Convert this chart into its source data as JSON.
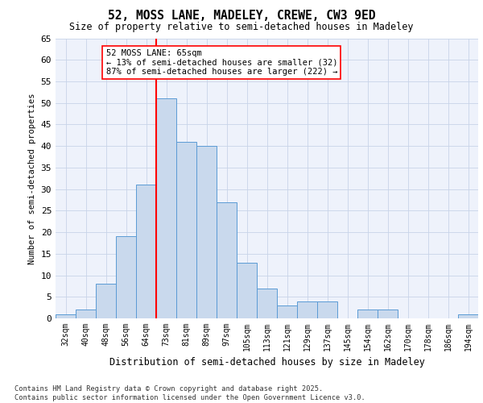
{
  "title": "52, MOSS LANE, MADELEY, CREWE, CW3 9ED",
  "subtitle": "Size of property relative to semi-detached houses in Madeley",
  "xlabel": "Distribution of semi-detached houses by size in Madeley",
  "ylabel": "Number of semi-detached properties",
  "categories": [
    "32sqm",
    "40sqm",
    "48sqm",
    "56sqm",
    "64sqm",
    "73sqm",
    "81sqm",
    "89sqm",
    "97sqm",
    "105sqm",
    "113sqm",
    "121sqm",
    "129sqm",
    "137sqm",
    "145sqm",
    "154sqm",
    "162sqm",
    "170sqm",
    "178sqm",
    "186sqm",
    "194sqm"
  ],
  "values": [
    1,
    2,
    8,
    19,
    31,
    51,
    41,
    40,
    27,
    13,
    7,
    3,
    4,
    4,
    0,
    2,
    2,
    0,
    0,
    0,
    1
  ],
  "bar_color": "#c9d9ed",
  "bar_edge_color": "#5b9bd5",
  "property_size": "65sqm",
  "pct_smaller": 13,
  "count_smaller": 32,
  "pct_larger": 87,
  "count_larger": 222,
  "red_line_x": 4.5,
  "ylim": [
    0,
    65
  ],
  "yticks": [
    0,
    5,
    10,
    15,
    20,
    25,
    30,
    35,
    40,
    45,
    50,
    55,
    60,
    65
  ],
  "background_color": "#eef2fb",
  "grid_color": "#c8d4e8",
  "footer_line1": "Contains HM Land Registry data © Crown copyright and database right 2025.",
  "footer_line2": "Contains public sector information licensed under the Open Government Licence v3.0."
}
